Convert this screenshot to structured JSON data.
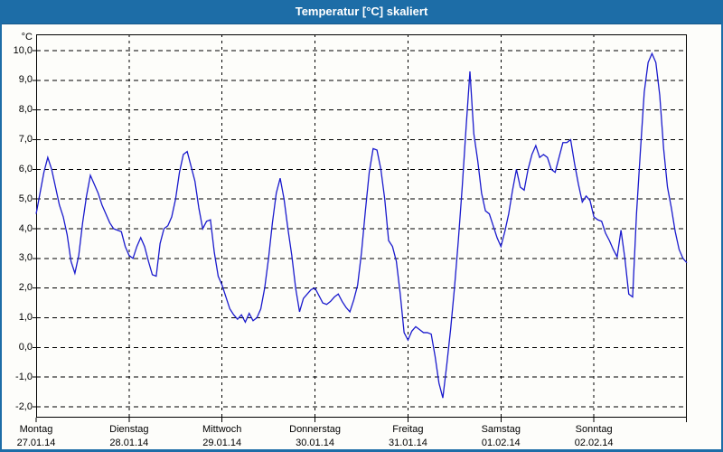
{
  "window": {
    "title": "Temperatur [°C] skaliert",
    "titlebar_color": "#1d6da7",
    "border_color": "#1d6da7",
    "background_color": "#fdfdfa"
  },
  "chart_data": {
    "type": "line",
    "title": "Temperatur [°C] skaliert",
    "unit_label": "°C",
    "line_color": "#1a1acd",
    "grid": "dashed",
    "grid_color": "#000000",
    "ylim": [
      -2,
      10
    ],
    "y_tick_values": [
      10,
      9,
      8,
      7,
      6,
      5,
      4,
      3,
      2,
      1,
      0,
      -1,
      -2
    ],
    "y_tick_labels": [
      "10,0",
      "9,0",
      "8,0",
      "7,0",
      "6,0",
      "5,0",
      "4,0",
      "3,0",
      "2,0",
      "1,0",
      "0,0",
      "-1,0",
      "-2,0"
    ],
    "x_days": [
      {
        "name": "Montag",
        "date": "27.01.14"
      },
      {
        "name": "Dienstag",
        "date": "28.01.14"
      },
      {
        "name": "Mittwoch",
        "date": "29.01.14"
      },
      {
        "name": "Donnerstag",
        "date": "30.01.14"
      },
      {
        "name": "Freitag",
        "date": "31.01.14"
      },
      {
        "name": "Samstag",
        "date": "01.02.14"
      },
      {
        "name": "Sonntag",
        "date": "02.02.14"
      }
    ],
    "sampling": "hourly",
    "points_per_day": 24,
    "series_hourly": [
      4.5,
      5.2,
      5.9,
      6.4,
      6.0,
      5.4,
      4.8,
      4.4,
      3.8,
      2.9,
      2.5,
      3.1,
      4.2,
      5.1,
      5.8,
      5.5,
      5.2,
      4.8,
      4.5,
      4.2,
      4.0,
      3.95,
      3.9,
      3.4,
      3.1,
      3.0,
      3.4,
      3.7,
      3.4,
      2.9,
      2.45,
      2.4,
      3.5,
      4.0,
      4.1,
      4.4,
      5.0,
      5.9,
      6.5,
      6.6,
      6.1,
      5.6,
      4.7,
      4.0,
      4.25,
      4.3,
      3.2,
      2.4,
      2.1,
      1.7,
      1.3,
      1.1,
      0.95,
      1.1,
      0.85,
      1.15,
      0.9,
      1.0,
      1.3,
      2.0,
      3.0,
      4.2,
      5.2,
      5.7,
      5.0,
      4.0,
      3.1,
      2.0,
      1.2,
      1.65,
      1.8,
      1.95,
      2.0,
      1.75,
      1.5,
      1.45,
      1.55,
      1.7,
      1.8,
      1.55,
      1.35,
      1.2,
      1.6,
      2.1,
      3.2,
      4.6,
      5.9,
      6.7,
      6.65,
      6.0,
      5.0,
      3.6,
      3.4,
      2.9,
      1.8,
      0.5,
      0.25,
      0.55,
      0.7,
      0.6,
      0.5,
      0.5,
      0.45,
      -0.3,
      -1.2,
      -1.7,
      -0.6,
      0.6,
      2.0,
      3.6,
      5.4,
      7.4,
      9.3,
      7.2,
      6.3,
      5.2,
      4.6,
      4.5,
      4.1,
      3.7,
      3.4,
      3.9,
      4.5,
      5.3,
      6.0,
      5.4,
      5.3,
      6.0,
      6.5,
      6.8,
      6.4,
      6.5,
      6.4,
      6.0,
      5.9,
      6.4,
      6.9,
      6.9,
      7.0,
      6.2,
      5.5,
      4.9,
      5.1,
      4.95,
      4.4,
      4.3,
      4.25,
      3.85,
      3.6,
      3.3,
      3.05,
      3.95,
      3.0,
      1.8,
      1.7,
      4.5,
      6.6,
      8.6,
      9.6,
      9.9,
      9.6,
      8.5,
      6.7,
      5.4,
      4.7,
      3.9,
      3.3,
      3.0,
      2.85
    ]
  }
}
